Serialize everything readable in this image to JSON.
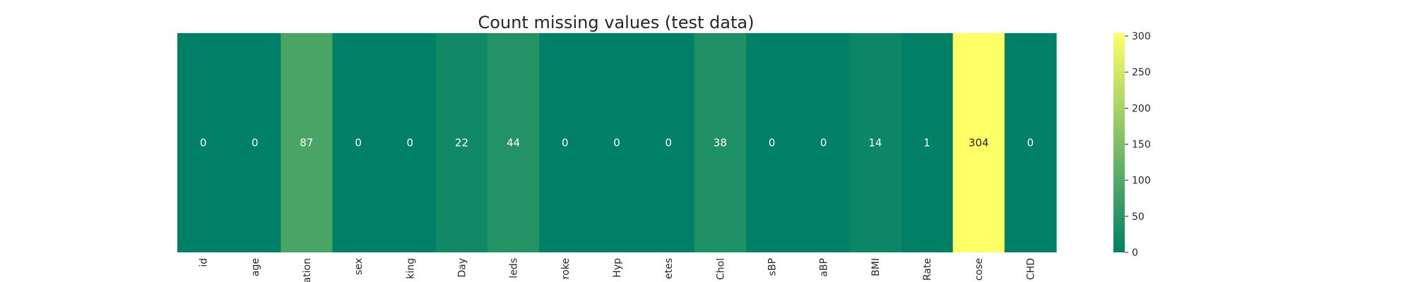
{
  "chart_data": {
    "type": "heatmap",
    "title": "Count missing values (test data)",
    "xlabel": "",
    "ylabel": "",
    "categories": [
      "id",
      "age",
      "ation",
      "sex",
      "king",
      "Day",
      "leds",
      "roke",
      "Hyp",
      "etes",
      "Chol",
      "sBP",
      "aBP",
      "BMI",
      "Rate",
      "cose",
      "CHD"
    ],
    "values": [
      0,
      0,
      87,
      0,
      0,
      22,
      44,
      0,
      0,
      0,
      38,
      0,
      0,
      14,
      1,
      304,
      0
    ],
    "colorbar": {
      "min": 0,
      "max": 304,
      "ticks": [
        0,
        50,
        100,
        150,
        200,
        250,
        300
      ]
    },
    "colormap": [
      "#008066",
      "#ffff66"
    ]
  }
}
